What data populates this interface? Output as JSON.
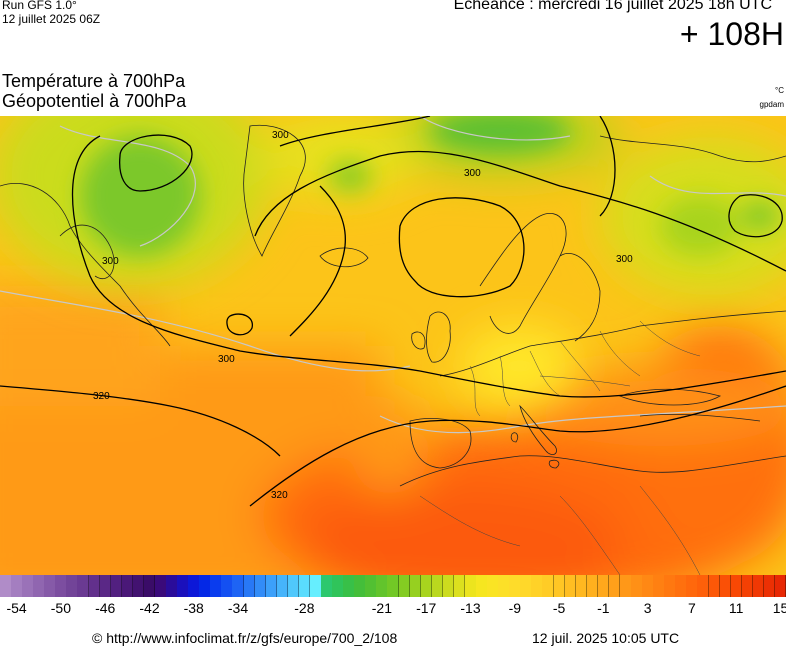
{
  "header": {
    "run": "Run GFS 1.0°",
    "run_date": "12 juillet 2025 06Z",
    "echeance": "Echéance : mercredi 16 juillet 2025 18h UTC",
    "lead_time": "+ 108H"
  },
  "titles": {
    "line1": "Température à 700hPa",
    "line2": "Géopotentiel à 700hPa",
    "unit_temp": "°C",
    "unit_geo": "gpdam"
  },
  "contour_labels": [
    "300",
    "300",
    "300",
    "300",
    "300",
    "320",
    "320"
  ],
  "scale": {
    "min": -55,
    "max": 16,
    "colors": [
      "#b08cc8",
      "#a47ec0",
      "#9a72b8",
      "#9066b0",
      "#865aa8",
      "#7c4ea0",
      "#724498",
      "#6a3a92",
      "#62308c",
      "#5a2886",
      "#522080",
      "#4a1878",
      "#421270",
      "#3a0c68",
      "#3a0a7a",
      "#2a0c9a",
      "#1a10bc",
      "#0c18d8",
      "#0428e6",
      "#0a3cee",
      "#1450f2",
      "#1e64f4",
      "#2878f6",
      "#328cf8",
      "#3ca0fa",
      "#46b4fb",
      "#50c8fc",
      "#5adcfd",
      "#66eefe",
      "#2cc86e",
      "#30c45a",
      "#38c048",
      "#44be3a",
      "#52c032",
      "#62c42c",
      "#72c826",
      "#84cc22",
      "#96d020",
      "#a8d41e",
      "#bad81e",
      "#ccdc1e",
      "#dce01e",
      "#ece41e",
      "#f6e620",
      "#fae424",
      "#fce028",
      "#fedc2a",
      "#ffd82a",
      "#ffd228",
      "#ffcc26",
      "#ffc624",
      "#ffbe22",
      "#ffb820",
      "#ffb01e",
      "#ffa81c",
      "#ffa01a",
      "#ff9818",
      "#ff9016",
      "#ff8814",
      "#ff8012",
      "#ff7810",
      "#ff700e",
      "#ff680c",
      "#fe600a",
      "#fc5808",
      "#fa5006",
      "#f84804",
      "#f44004",
      "#f03804",
      "#ec3004",
      "#e82804"
    ],
    "ticks": [
      "-54",
      "-50",
      "-46",
      "-42",
      "-38",
      "-34",
      "-28",
      "-21",
      "-17",
      "-13",
      "-9",
      "-5",
      "-1",
      "3",
      "7",
      "11",
      "15"
    ]
  },
  "footer": {
    "credit": "© http://www.infoclimat.fr/z/gfs/europe/700_2/108",
    "timestamp": "12 juil. 2025 10:05 UTC"
  }
}
